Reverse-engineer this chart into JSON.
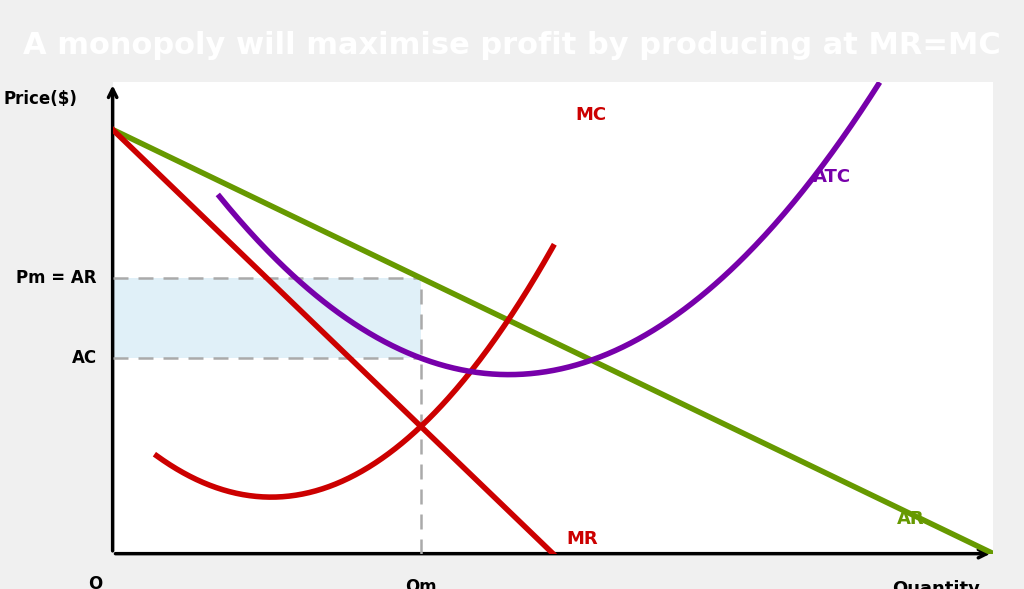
{
  "title": "A monopoly will maximise profit by producing at MR=MC",
  "title_bg": "#000000",
  "title_color": "#ffffff",
  "title_fontsize": 22,
  "bg_color": "#ffffff",
  "xlabel": "Quantity",
  "ylabel": "Price($)",
  "x_origin_label": "O",
  "x_qm_label": "Qm",
  "pm_label": "Pm = AR",
  "ac_label": "AC",
  "mc_label": "MC",
  "mr_label": "MR",
  "ar_label": "AR",
  "atc_label": "ATC",
  "color_red": "#cc0000",
  "color_green": "#669900",
  "color_purple": "#7700aa",
  "color_dashed": "#aaaaaa",
  "color_profit_fill": "#d0e8f5",
  "xmin": 0,
  "xmax": 10,
  "ymin": 0,
  "ymax": 10,
  "ar_intercept": 9.0,
  "ar_slope": 0.9,
  "qm_val": 3.5,
  "mc_min_x": 1.8,
  "mc_min_y": 1.2,
  "mc_a": 0.38,
  "atc_min_x": 4.5,
  "atc_min_y": 3.8,
  "atc_b": 0.07
}
